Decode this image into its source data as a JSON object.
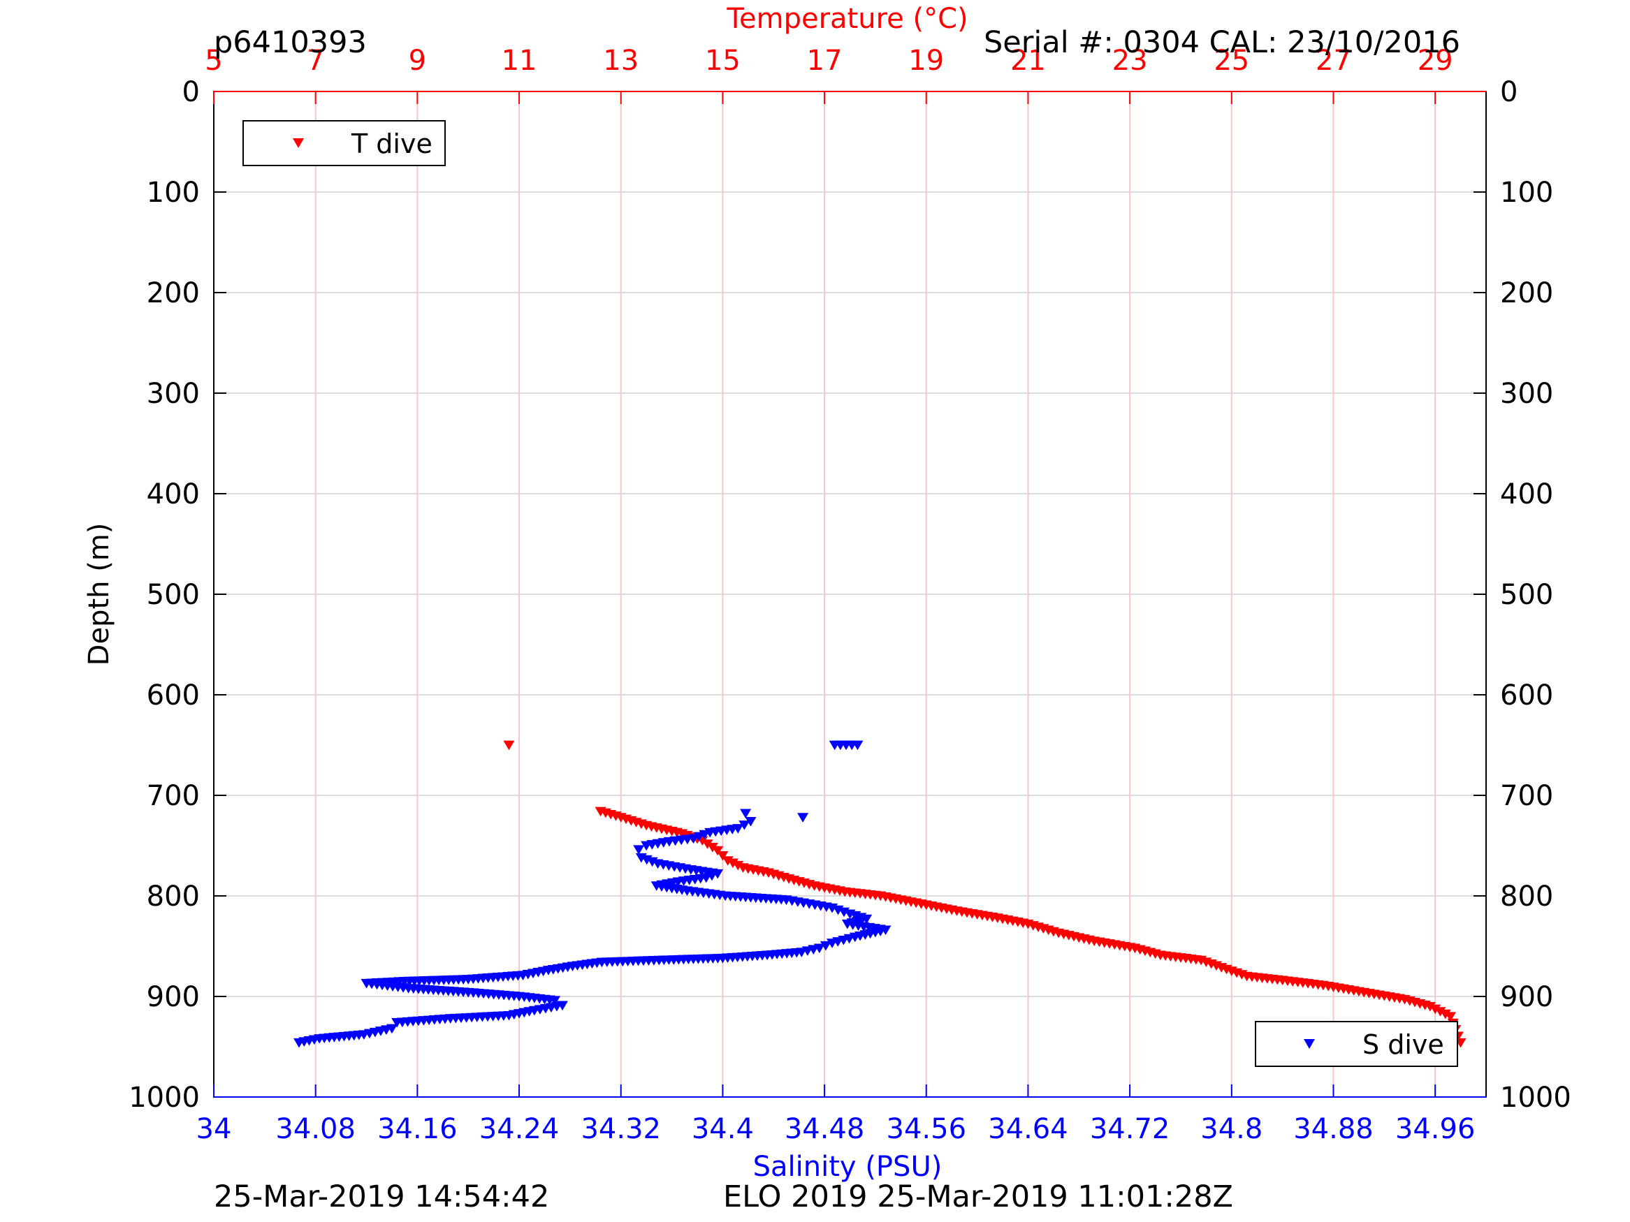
{
  "header": {
    "profile_id": "p6410393",
    "serial": "Serial #: 0304  CAL: 23/10/2016"
  },
  "footer": {
    "timestamp_left": "25-Mar-2019 14:54:42",
    "timestamp_right": "ELO 2019 25-Mar-2019 11:01:28Z"
  },
  "colors": {
    "temperature": "#ff0000",
    "salinity": "#0000ff",
    "temp_grid": "#f5c8c8",
    "grid": "#dcdcdc",
    "axis": "#000000"
  },
  "chart_data": {
    "type": "scatter",
    "grid": true,
    "y_axis": {
      "label": "Depth (m)",
      "range": [
        0,
        1000
      ],
      "reversed": true,
      "ticks": [
        0,
        100,
        200,
        300,
        400,
        500,
        600,
        700,
        800,
        900,
        1000
      ],
      "tick_labels": [
        "0",
        "100",
        "200",
        "300",
        "400",
        "500",
        "600",
        "700",
        "800",
        "900",
        "1000"
      ]
    },
    "x_axis_top": {
      "label": "Temperature (°C)",
      "range": [
        5,
        30
      ],
      "ticks": [
        5,
        7,
        9,
        11,
        13,
        15,
        17,
        19,
        21,
        23,
        25,
        27,
        29
      ],
      "tick_labels": [
        "5",
        "7",
        "9",
        "11",
        "13",
        "15",
        "17",
        "19",
        "21",
        "23",
        "25",
        "27",
        "29"
      ]
    },
    "x_axis_bottom": {
      "label": "Salinity (PSU)",
      "range": [
        34.0,
        35.0
      ],
      "ticks": [
        34.0,
        34.08,
        34.16,
        34.24,
        34.32,
        34.4,
        34.48,
        34.56,
        34.64,
        34.72,
        34.8,
        34.88,
        34.96
      ],
      "tick_labels": [
        "34",
        "34.08",
        "34.16",
        "34.24",
        "34.32",
        "34.4",
        "34.48",
        "34.56",
        "34.64",
        "34.72",
        "34.8",
        "34.88",
        "34.96"
      ]
    },
    "legends": [
      {
        "name": "T dive",
        "placement": "top-left"
      },
      {
        "name": "S dive",
        "placement": "bottom-right"
      }
    ],
    "series": [
      {
        "name": "T dive",
        "axis": "temperature",
        "marker": "triangle-down",
        "points": [
          [
            10.8,
            650
          ],
          [
            12.6,
            716
          ],
          [
            13.0,
            722
          ],
          [
            13.5,
            730
          ],
          [
            14.2,
            738
          ],
          [
            14.6,
            745
          ],
          [
            14.9,
            755
          ],
          [
            15.1,
            765
          ],
          [
            15.4,
            772
          ],
          [
            15.9,
            777
          ],
          [
            16.3,
            783
          ],
          [
            16.8,
            790
          ],
          [
            17.4,
            796
          ],
          [
            18.1,
            800
          ],
          [
            18.8,
            807
          ],
          [
            19.6,
            815
          ],
          [
            20.4,
            822
          ],
          [
            21.0,
            828
          ],
          [
            21.6,
            837
          ],
          [
            22.3,
            845
          ],
          [
            23.1,
            852
          ],
          [
            23.6,
            859
          ],
          [
            24.4,
            864
          ],
          [
            24.9,
            873
          ],
          [
            25.3,
            880
          ],
          [
            26.0,
            884
          ],
          [
            26.8,
            889
          ],
          [
            27.6,
            896
          ],
          [
            28.4,
            903
          ],
          [
            28.9,
            910
          ],
          [
            29.3,
            920
          ],
          [
            29.4,
            933
          ],
          [
            29.5,
            946
          ]
        ]
      },
      {
        "name": "S dive",
        "axis": "salinity",
        "marker": "triangle-down",
        "points": [
          [
            34.488,
            650
          ],
          [
            34.506,
            650
          ],
          [
            34.463,
            722
          ],
          [
            34.418,
            718
          ],
          [
            34.422,
            726
          ],
          [
            34.412,
            733
          ],
          [
            34.39,
            737
          ],
          [
            34.377,
            743
          ],
          [
            34.358,
            746
          ],
          [
            34.34,
            750
          ],
          [
            34.334,
            754
          ],
          [
            34.336,
            762
          ],
          [
            34.349,
            768
          ],
          [
            34.362,
            771
          ],
          [
            34.375,
            774
          ],
          [
            34.396,
            778
          ],
          [
            34.387,
            782
          ],
          [
            34.365,
            786
          ],
          [
            34.348,
            790
          ],
          [
            34.372,
            795
          ],
          [
            34.402,
            800
          ],
          [
            34.45,
            804
          ],
          [
            34.468,
            808
          ],
          [
            34.486,
            812
          ],
          [
            34.5,
            818
          ],
          [
            34.513,
            823
          ],
          [
            34.498,
            828
          ],
          [
            34.528,
            834
          ],
          [
            34.504,
            841
          ],
          [
            34.486,
            847
          ],
          [
            34.476,
            852
          ],
          [
            34.462,
            856
          ],
          [
            34.435,
            859
          ],
          [
            34.4,
            862
          ],
          [
            34.35,
            864
          ],
          [
            34.305,
            866
          ],
          [
            34.282,
            870
          ],
          [
            34.263,
            874
          ],
          [
            34.243,
            879
          ],
          [
            34.2,
            883
          ],
          [
            34.15,
            885
          ],
          [
            34.12,
            887
          ],
          [
            34.153,
            892
          ],
          [
            34.2,
            896
          ],
          [
            34.24,
            900
          ],
          [
            34.268,
            904
          ],
          [
            34.274,
            909
          ],
          [
            34.252,
            914
          ],
          [
            34.232,
            919
          ],
          [
            34.186,
            922
          ],
          [
            34.144,
            926
          ],
          [
            34.14,
            932
          ],
          [
            34.118,
            938
          ],
          [
            34.083,
            942
          ],
          [
            34.067,
            946
          ]
        ]
      }
    ]
  }
}
